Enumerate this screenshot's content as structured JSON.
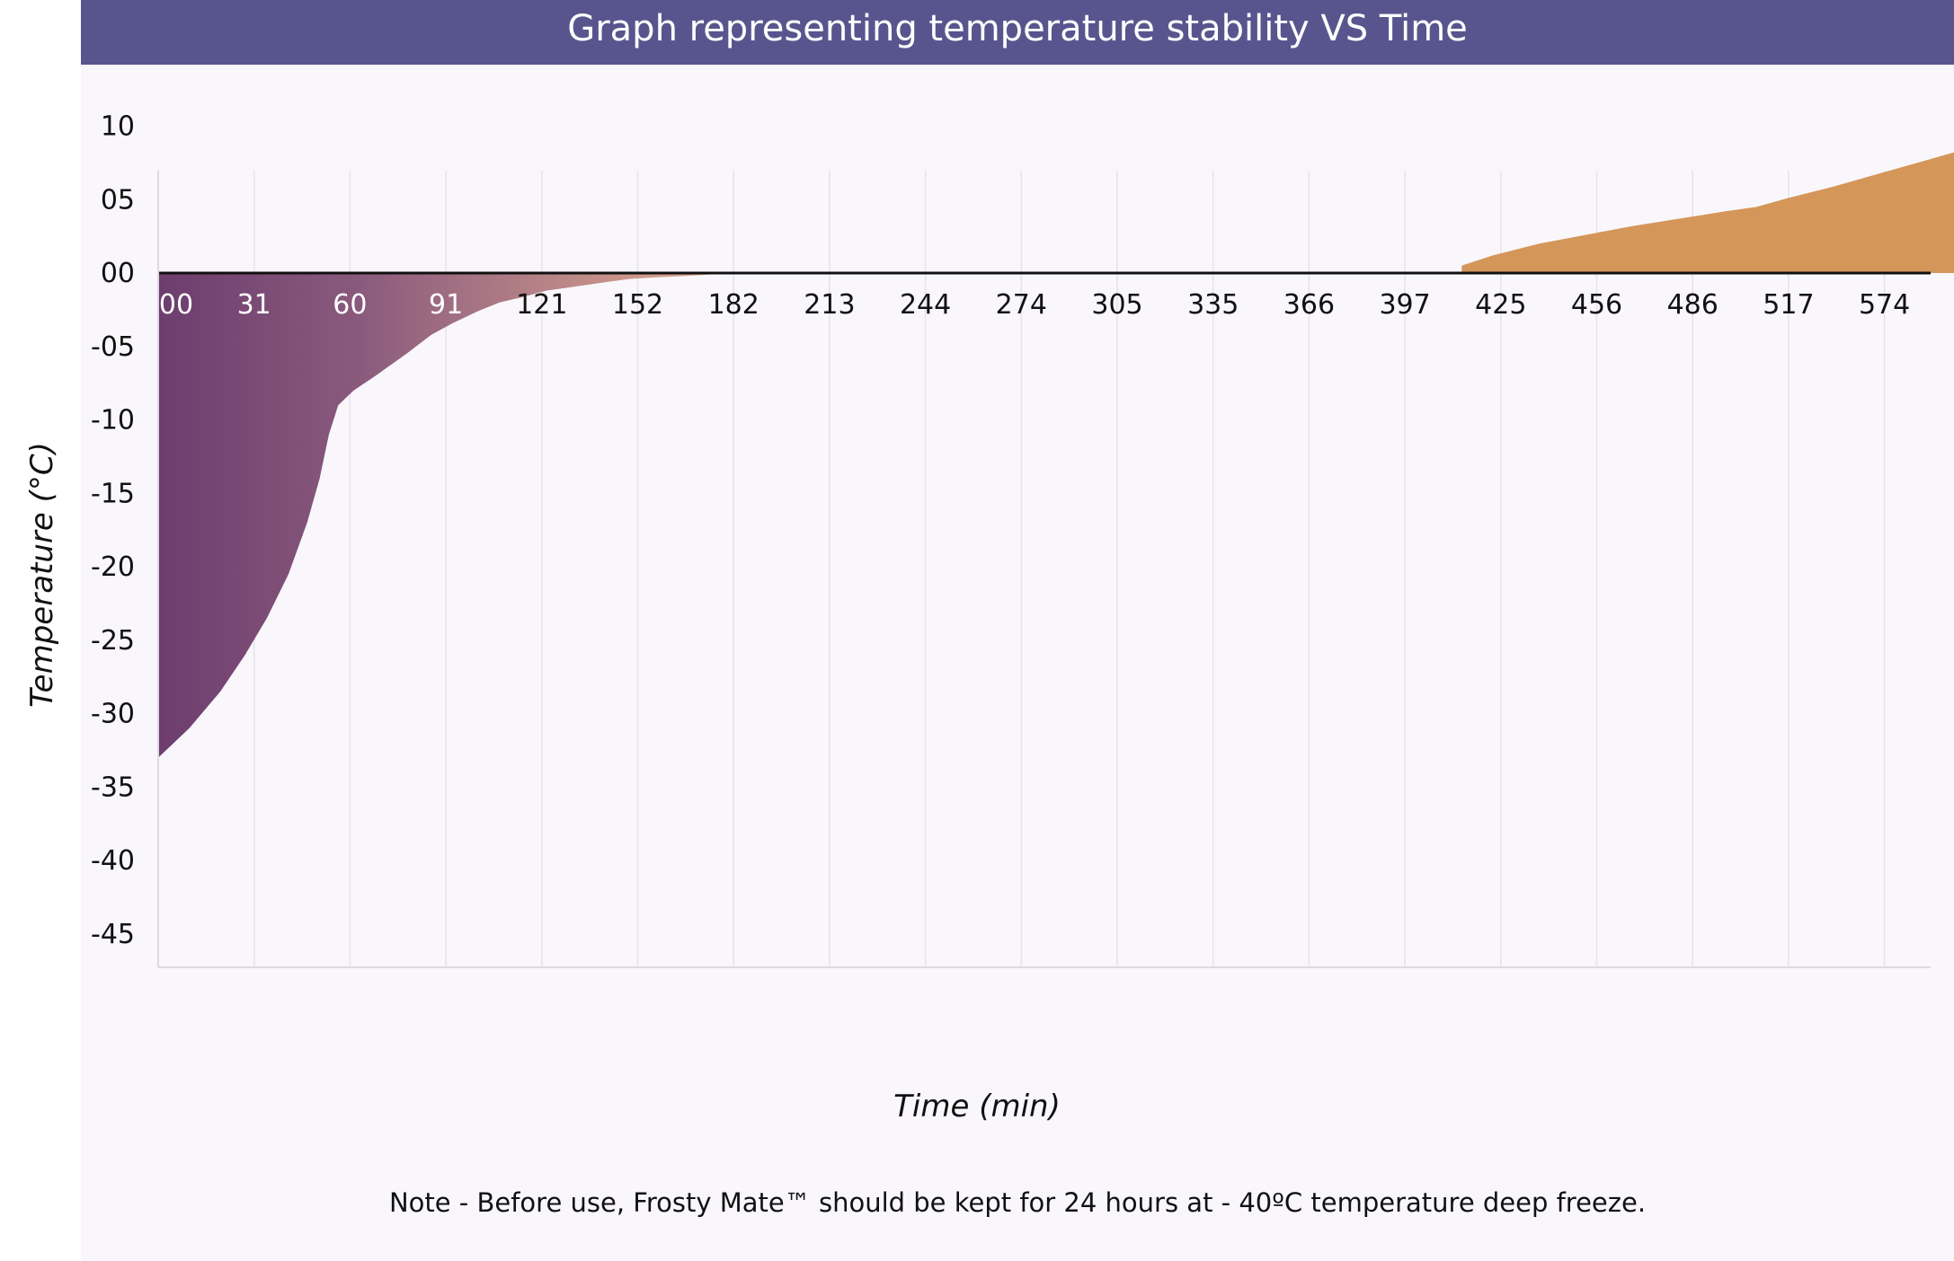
{
  "chart_data": {
    "type": "area",
    "title": "Graph representing temperature stability VS Time",
    "xlabel": "Time (min)",
    "ylabel": "Temperature (°C)",
    "x_tick_labels": [
      "00",
      "31",
      "60",
      "91",
      "121",
      "152",
      "182",
      "213",
      "244",
      "274",
      "305",
      "335",
      "366",
      "397",
      "425",
      "456",
      "486",
      "517",
      "574"
    ],
    "y_tick_labels": [
      "10",
      "05",
      "00",
      "-05",
      "-10",
      "-15",
      "-20",
      "-25",
      "-30",
      "-35",
      "-40",
      "-45"
    ],
    "y_tick_values": [
      10,
      5,
      0,
      -5,
      -10,
      -15,
      -20,
      -25,
      -30,
      -35,
      -40,
      -45
    ],
    "ylim": [
      -47,
      10
    ],
    "grid": "vertical",
    "series": [
      {
        "x": [
          0,
          10,
          20,
          28,
          35,
          42,
          48,
          52,
          55,
          58,
          63,
          70,
          80,
          88,
          95,
          103,
          110,
          118,
          125,
          135,
          145,
          152,
          160,
          170,
          178,
          185
        ],
        "y": [
          -33,
          -31,
          -28.5,
          -26,
          -23.5,
          -20.5,
          -17,
          -14,
          -11,
          -9,
          -8,
          -7,
          -5.5,
          -4.2,
          -3.4,
          -2.6,
          -2,
          -1.6,
          -1.2,
          -0.9,
          -0.6,
          -0.4,
          -0.3,
          -0.2,
          -0.1,
          0
        ],
        "fill_colors": [
          "#6c3d6e",
          "#e3ac8f"
        ]
      },
      {
        "x": [
          420,
          430,
          445,
          460,
          475,
          490,
          505,
          515,
          525,
          540,
          555,
          570,
          580,
          586,
          587
        ],
        "y": [
          0.5,
          1.2,
          2.0,
          2.6,
          3.2,
          3.7,
          4.2,
          4.5,
          5.1,
          5.9,
          6.8,
          7.7,
          8.3,
          8.8,
          0
        ],
        "fill_colors": [
          "#d49659"
        ]
      }
    ]
  },
  "note": "Note - Before use, Frosty Mate™ should be kept for 24 hours at - 40ºC temperature deep freeze."
}
